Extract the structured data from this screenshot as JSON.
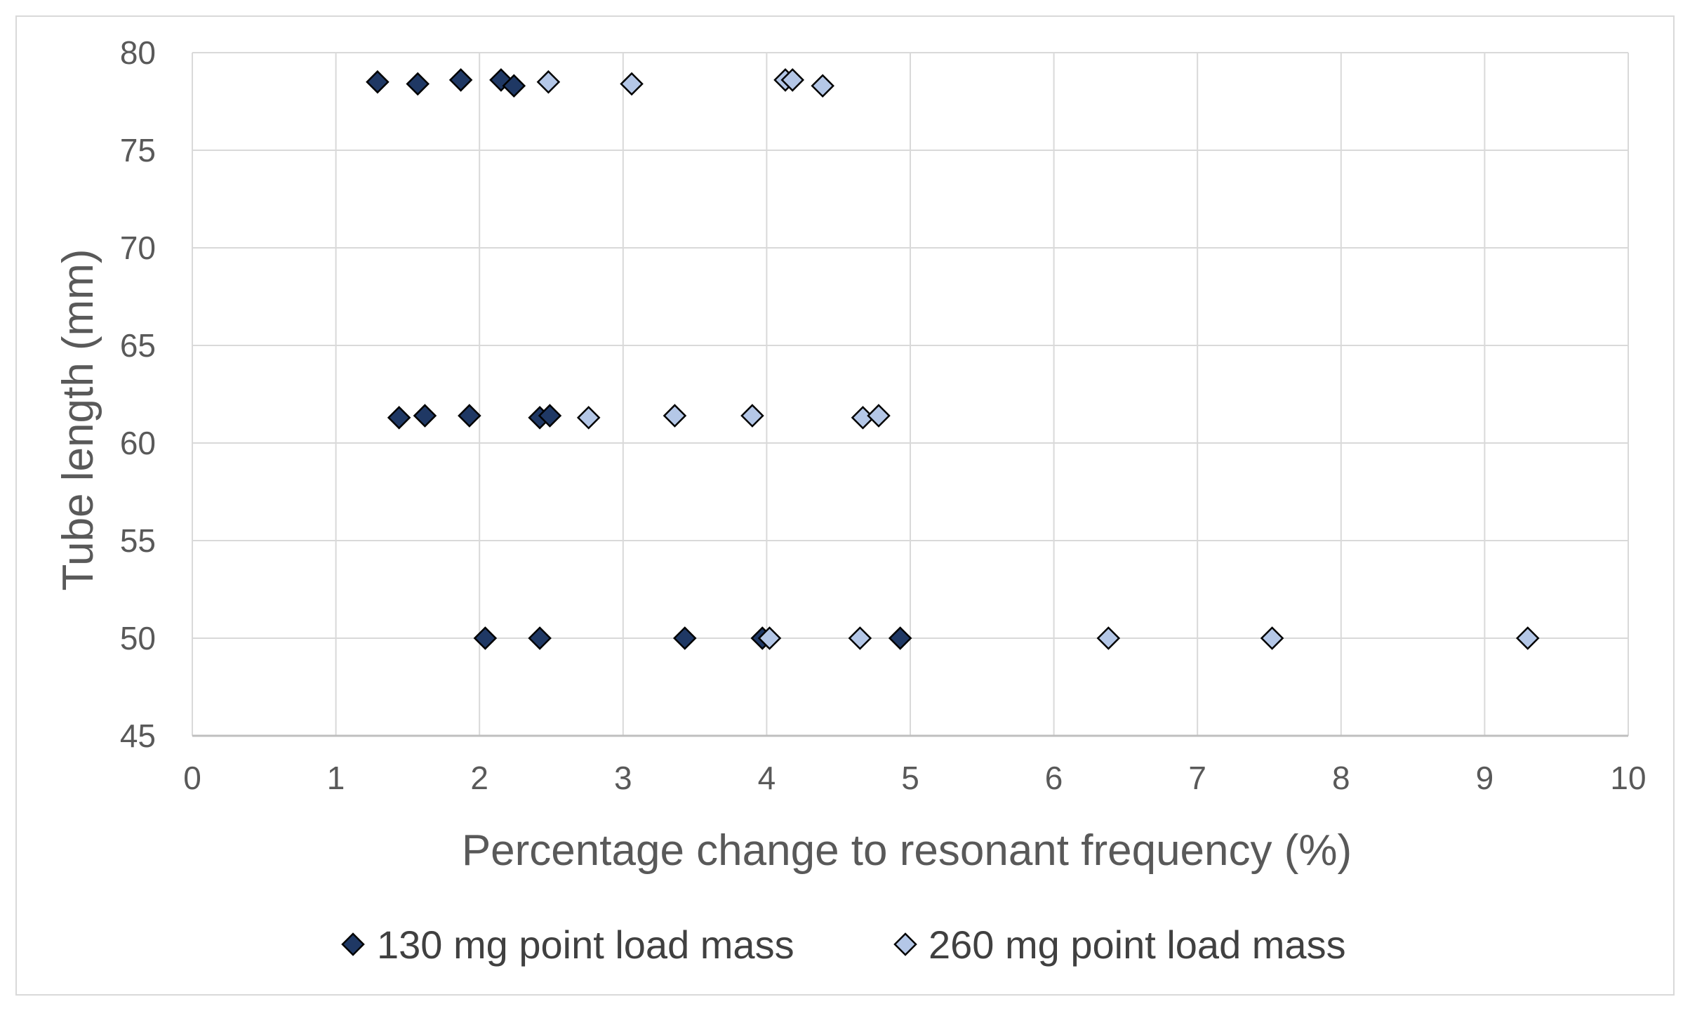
{
  "chart_data": {
    "type": "scatter",
    "title": "",
    "xlabel": "Percentage change to resonant frequency (%)",
    "ylabel": "Tube length (mm)",
    "xlim": [
      0,
      10
    ],
    "ylim": [
      45,
      80
    ],
    "xticks": [
      0,
      1,
      2,
      3,
      4,
      5,
      6,
      7,
      8,
      9,
      10
    ],
    "yticks": [
      45,
      50,
      55,
      60,
      65,
      70,
      75,
      80
    ],
    "grid": true,
    "legend_position": "bottom",
    "series": [
      {
        "name": "130 mg point load mass",
        "marker": "diamond",
        "color": "#1f3864",
        "points": [
          {
            "x": 1.29,
            "y": 78.5
          },
          {
            "x": 1.57,
            "y": 78.4
          },
          {
            "x": 1.87,
            "y": 78.6
          },
          {
            "x": 2.15,
            "y": 78.6
          },
          {
            "x": 2.24,
            "y": 78.3
          },
          {
            "x": 1.44,
            "y": 61.3
          },
          {
            "x": 1.62,
            "y": 61.4
          },
          {
            "x": 1.93,
            "y": 61.4
          },
          {
            "x": 2.42,
            "y": 61.3
          },
          {
            "x": 2.49,
            "y": 61.4
          },
          {
            "x": 2.04,
            "y": 50.0
          },
          {
            "x": 2.42,
            "y": 50.0
          },
          {
            "x": 3.43,
            "y": 50.0
          },
          {
            "x": 3.97,
            "y": 50.0
          },
          {
            "x": 4.93,
            "y": 50.0
          }
        ]
      },
      {
        "name": "260 mg point load mass",
        "marker": "diamond",
        "color": "#b4c7e7",
        "points": [
          {
            "x": 2.48,
            "y": 78.5
          },
          {
            "x": 3.06,
            "y": 78.4
          },
          {
            "x": 4.13,
            "y": 78.6
          },
          {
            "x": 4.18,
            "y": 78.6
          },
          {
            "x": 4.39,
            "y": 78.3
          },
          {
            "x": 2.76,
            "y": 61.3
          },
          {
            "x": 3.36,
            "y": 61.4
          },
          {
            "x": 3.9,
            "y": 61.4
          },
          {
            "x": 4.67,
            "y": 61.3
          },
          {
            "x": 4.78,
            "y": 61.4
          },
          {
            "x": 4.02,
            "y": 50.0
          },
          {
            "x": 4.65,
            "y": 50.0
          },
          {
            "x": 6.38,
            "y": 50.0
          },
          {
            "x": 7.52,
            "y": 50.0
          },
          {
            "x": 9.3,
            "y": 50.0
          }
        ]
      }
    ]
  },
  "colors": {
    "series_stroke": "#000000",
    "grid": "#d9d9d9",
    "axis": "#bfbfbf"
  }
}
